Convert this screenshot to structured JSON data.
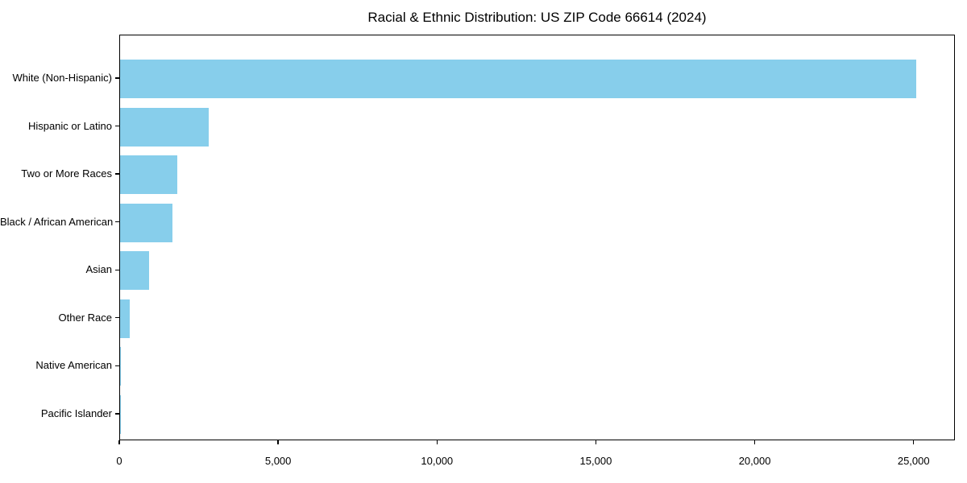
{
  "chart_data": {
    "type": "bar",
    "orientation": "horizontal",
    "title": "Racial & Ethnic Distribution: US ZIP Code 66614 (2024)",
    "categories": [
      "White (Non-Hispanic)",
      "Hispanic or Latino",
      "Two or More Races",
      "Black / African American",
      "Asian",
      "Other Race",
      "Native American",
      "Pacific Islander"
    ],
    "values": [
      25100,
      2800,
      1800,
      1650,
      910,
      300,
      20,
      10
    ],
    "xlabel": "",
    "ylabel": "",
    "xlim": [
      0,
      26300
    ],
    "xticks": [
      0,
      5000,
      10000,
      15000,
      20000,
      25000
    ],
    "xtick_labels": [
      "0",
      "5,000",
      "10,000",
      "15,000",
      "20,000",
      "25,000"
    ],
    "bar_color": "#87CEEB",
    "spine_color": "#000000",
    "text_color": "#000000",
    "background_color": "#ffffff",
    "grid": false,
    "legend": null
  }
}
